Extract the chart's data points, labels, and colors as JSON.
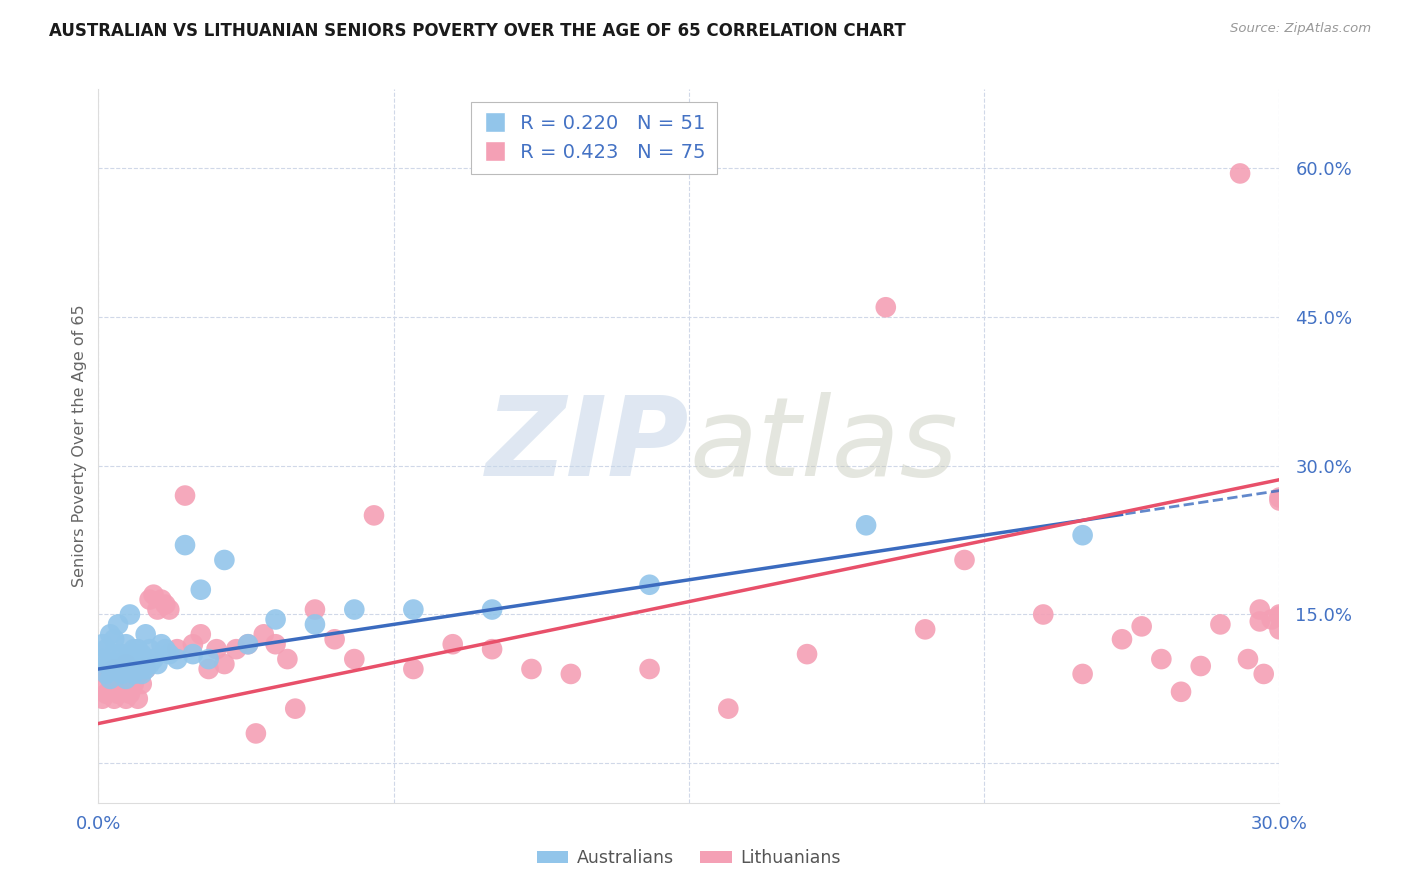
{
  "title": "AUSTRALIAN VS LITHUANIAN SENIORS POVERTY OVER THE AGE OF 65 CORRELATION CHART",
  "source": "Source: ZipAtlas.com",
  "ylabel": "Seniors Poverty Over the Age of 65",
  "xlim": [
    0.0,
    0.3
  ],
  "ylim": [
    -0.04,
    0.68
  ],
  "yticks": [
    0.0,
    0.15,
    0.3,
    0.45,
    0.6
  ],
  "ytick_labels": [
    "",
    "15.0%",
    "30.0%",
    "45.0%",
    "60.0%"
  ],
  "xticks": [
    0.0,
    0.075,
    0.15,
    0.225,
    0.3
  ],
  "xtick_labels": [
    "0.0%",
    "",
    "",
    "",
    "30.0%"
  ],
  "aus_R": 0.22,
  "aus_N": 51,
  "lit_R": 0.423,
  "lit_N": 75,
  "aus_color": "#92C5EA",
  "lit_color": "#F4A0B5",
  "aus_line_color": "#3B6BBF",
  "lit_line_color": "#E8506A",
  "watermark_zip": "ZIP",
  "watermark_atlas": "atlas",
  "watermark_color_zip": "#C5D5E8",
  "watermark_color_atlas": "#C5C8B8",
  "title_fontsize": 12,
  "axis_color": "#4472C4",
  "grid_color": "#D0D8E8",
  "aus_intercept": 0.095,
  "aus_slope": 0.6,
  "lit_intercept": 0.04,
  "lit_slope": 0.82,
  "aus_scatter_x": [
    0.001,
    0.001,
    0.002,
    0.002,
    0.002,
    0.003,
    0.003,
    0.003,
    0.004,
    0.004,
    0.004,
    0.005,
    0.005,
    0.005,
    0.006,
    0.006,
    0.007,
    0.007,
    0.007,
    0.008,
    0.008,
    0.009,
    0.009,
    0.01,
    0.01,
    0.011,
    0.011,
    0.012,
    0.012,
    0.013,
    0.013,
    0.014,
    0.015,
    0.016,
    0.017,
    0.018,
    0.02,
    0.022,
    0.024,
    0.026,
    0.028,
    0.032,
    0.038,
    0.045,
    0.055,
    0.065,
    0.08,
    0.1,
    0.14,
    0.195,
    0.25
  ],
  "aus_scatter_y": [
    0.105,
    0.12,
    0.09,
    0.1,
    0.115,
    0.085,
    0.1,
    0.13,
    0.095,
    0.11,
    0.125,
    0.095,
    0.1,
    0.14,
    0.09,
    0.11,
    0.085,
    0.1,
    0.12,
    0.095,
    0.15,
    0.09,
    0.115,
    0.095,
    0.115,
    0.09,
    0.11,
    0.095,
    0.13,
    0.1,
    0.115,
    0.105,
    0.1,
    0.12,
    0.115,
    0.11,
    0.105,
    0.22,
    0.11,
    0.175,
    0.105,
    0.205,
    0.12,
    0.145,
    0.14,
    0.155,
    0.155,
    0.155,
    0.18,
    0.24,
    0.23
  ],
  "lit_scatter_x": [
    0.001,
    0.001,
    0.002,
    0.002,
    0.003,
    0.003,
    0.004,
    0.004,
    0.005,
    0.005,
    0.006,
    0.006,
    0.007,
    0.007,
    0.008,
    0.008,
    0.009,
    0.01,
    0.01,
    0.011,
    0.012,
    0.013,
    0.014,
    0.015,
    0.016,
    0.017,
    0.018,
    0.02,
    0.022,
    0.024,
    0.026,
    0.028,
    0.03,
    0.032,
    0.035,
    0.038,
    0.04,
    0.042,
    0.045,
    0.048,
    0.05,
    0.055,
    0.06,
    0.065,
    0.07,
    0.08,
    0.09,
    0.1,
    0.11,
    0.12,
    0.14,
    0.16,
    0.18,
    0.2,
    0.21,
    0.22,
    0.24,
    0.25,
    0.26,
    0.265,
    0.27,
    0.275,
    0.28,
    0.285,
    0.29,
    0.292,
    0.295,
    0.295,
    0.296,
    0.298,
    0.3,
    0.3,
    0.3,
    0.3,
    0.3
  ],
  "lit_scatter_y": [
    0.065,
    0.08,
    0.07,
    0.09,
    0.075,
    0.085,
    0.065,
    0.095,
    0.07,
    0.085,
    0.075,
    0.09,
    0.065,
    0.1,
    0.07,
    0.09,
    0.08,
    0.065,
    0.09,
    0.08,
    0.095,
    0.165,
    0.17,
    0.155,
    0.165,
    0.16,
    0.155,
    0.115,
    0.27,
    0.12,
    0.13,
    0.095,
    0.115,
    0.1,
    0.115,
    0.12,
    0.03,
    0.13,
    0.12,
    0.105,
    0.055,
    0.155,
    0.125,
    0.105,
    0.25,
    0.095,
    0.12,
    0.115,
    0.095,
    0.09,
    0.095,
    0.055,
    0.11,
    0.46,
    0.135,
    0.205,
    0.15,
    0.09,
    0.125,
    0.138,
    0.105,
    0.072,
    0.098,
    0.14,
    0.595,
    0.105,
    0.143,
    0.155,
    0.09,
    0.145,
    0.268,
    0.135,
    0.148,
    0.265,
    0.15
  ]
}
